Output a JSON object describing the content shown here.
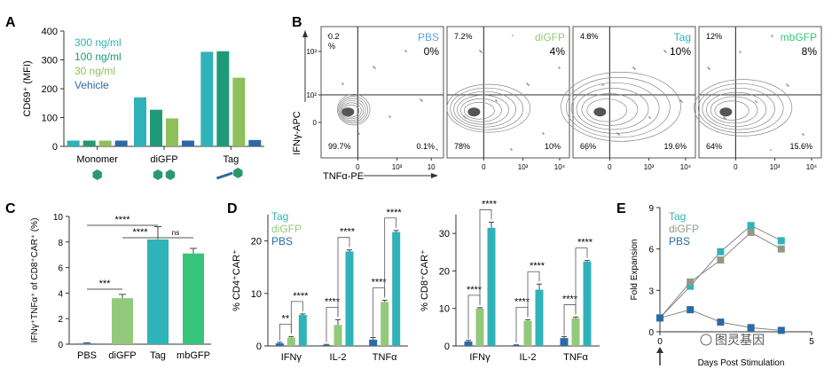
{
  "colors": {
    "teal": "#2fb3b8",
    "green": "#1f9a78",
    "olive": "#8fbf5a",
    "blue": "#2b6aa8",
    "mbgfp": "#36c57a",
    "diGFP_light": "#93c97b",
    "tag_grey": "#8f9a83",
    "axis": "#333333"
  },
  "panels": {
    "A": {
      "letter": "A"
    },
    "B": {
      "letter": "B"
    },
    "C": {
      "letter": "C"
    },
    "D": {
      "letter": "D"
    },
    "E": {
      "letter": "E"
    }
  },
  "chart_data": [
    {
      "panel": "A",
      "type": "bar",
      "ylabel": "CD69⁺ (MFI)",
      "ylim": [
        0,
        400
      ],
      "yticks": [
        0,
        100,
        200,
        300,
        400
      ],
      "categories": [
        "Monomer",
        "diGFP",
        "Tag"
      ],
      "series": [
        {
          "name": "300 ng/ml",
          "color": "#2fb3b8",
          "values": [
            20,
            170,
            328
          ]
        },
        {
          "name": "100 ng/ml",
          "color": "#1f9a78",
          "values": [
            20,
            127,
            330
          ]
        },
        {
          "name": "30 ng/ml",
          "color": "#8fbf5a",
          "values": [
            20,
            97,
            238
          ]
        },
        {
          "name": "Vehicle",
          "color": "#2b6aa8",
          "values": [
            20,
            20,
            22
          ]
        }
      ],
      "legend_placement": "top-left"
    },
    {
      "panel": "B",
      "type": "scatter",
      "xlabel": "TNFα-PE",
      "ylabel": "IFNγ-APC",
      "x_ticks": [
        "0",
        "10³",
        "10",
        "10⁴"
      ],
      "y_ticks": [
        "0",
        "10²",
        "10³"
      ],
      "plots": [
        {
          "name": "PBS",
          "color": "#5aa3e8",
          "pct_main": "0%",
          "q_ul": "0.2\n%",
          "q_ll": "99.7%",
          "q_lr": "0.1%"
        },
        {
          "name": "diGFP",
          "color": "#93c97b",
          "pct_main": "4%",
          "q_ul": "7.2%",
          "q_ll": "78%",
          "q_lr": "10%"
        },
        {
          "name": "Tag",
          "color": "#2fb3b8",
          "pct_main": "10%",
          "q_ul": "4.8%",
          "q_ll": "66%",
          "q_lr": "19.6%"
        },
        {
          "name": "mbGFP",
          "color": "#36c57a",
          "pct_main": "8%",
          "q_ul": "12%",
          "q_ll": "64%",
          "q_lr": "15.6%"
        }
      ]
    },
    {
      "panel": "C",
      "type": "bar",
      "ylabel": "IFNγ⁺TNFα⁺ of CD8⁺CAR⁺ (%)",
      "ylim": [
        0,
        10
      ],
      "yticks": [
        0,
        2,
        4,
        6,
        8,
        10
      ],
      "categories": [
        "PBS",
        "diGFP",
        "Tag",
        "mbGFP"
      ],
      "values": [
        0.05,
        3.6,
        8.2,
        7.1
      ],
      "errors": [
        0.05,
        0.3,
        1.0,
        0.4
      ],
      "colors": [
        "#2b6aa8",
        "#93c97b",
        "#2fb3b8",
        "#36c57a"
      ],
      "sig": [
        {
          "from": 0,
          "to": 1,
          "label": "***"
        },
        {
          "from": 0,
          "to": 2,
          "label": "****"
        },
        {
          "from": 1,
          "to": 2,
          "label": "****"
        },
        {
          "from": 2,
          "to": 3,
          "label": "ns"
        }
      ]
    },
    {
      "panel": "D1",
      "type": "bar",
      "ylabel": "% CD4⁺CAR⁺",
      "ylim": [
        0,
        25
      ],
      "yticks": [
        0,
        10,
        20
      ],
      "categories": [
        "IFNγ",
        "IL-2",
        "TNFα"
      ],
      "series": [
        {
          "name": "PBS",
          "color": "#2b6aa8",
          "values": [
            0.5,
            0.2,
            1.2
          ],
          "errors": [
            0.2,
            0.1,
            0.4
          ]
        },
        {
          "name": "diGFP",
          "color": "#93c97b",
          "values": [
            1.6,
            4.0,
            8.4
          ],
          "errors": [
            0.2,
            1.0,
            0.3
          ]
        },
        {
          "name": "Tag",
          "color": "#2fb3b8",
          "values": [
            5.9,
            18.0,
            21.7
          ],
          "errors": [
            0.2,
            0.3,
            0.3
          ]
        }
      ],
      "legend": [
        "Tag",
        "diGFP",
        "PBS"
      ],
      "sig": [
        [
          "**",
          "****"
        ],
        [
          "****",
          "****"
        ],
        [
          "****",
          "****"
        ]
      ]
    },
    {
      "panel": "D2",
      "type": "bar",
      "ylabel": "% CD8⁺CAR⁺",
      "ylim": [
        0,
        35
      ],
      "yticks": [
        0,
        10,
        20,
        30
      ],
      "categories": [
        "IFNγ",
        "IL-2",
        "TNFα"
      ],
      "series": [
        {
          "name": "PBS",
          "color": "#2b6aa8",
          "values": [
            1.2,
            0.2,
            2.1
          ],
          "errors": [
            0.3,
            0.1,
            0.4
          ]
        },
        {
          "name": "diGFP",
          "color": "#93c97b",
          "values": [
            10.0,
            6.7,
            7.4
          ],
          "errors": [
            0.2,
            0.3,
            0.3
          ]
        },
        {
          "name": "Tag",
          "color": "#2fb3b8",
          "values": [
            31.5,
            15.0,
            22.5
          ],
          "errors": [
            1.5,
            1.5,
            0.3
          ]
        }
      ],
      "sig": [
        [
          "****",
          "****"
        ],
        [
          "****",
          "****"
        ],
        [
          "****",
          "****"
        ]
      ]
    },
    {
      "panel": "E",
      "type": "line",
      "xlabel": "Days Post Stimulation",
      "ylabel": "Fold Expansion",
      "xlim": [
        0,
        5
      ],
      "ylim": [
        0,
        9
      ],
      "yticks": [
        0,
        3,
        6,
        9
      ],
      "xticks": [
        0,
        5
      ],
      "x": [
        0,
        1,
        2,
        3,
        4
      ],
      "series": [
        {
          "name": "Tag",
          "color": "#2fb3b8",
          "values": [
            1.0,
            3.3,
            5.8,
            7.7,
            6.6
          ]
        },
        {
          "name": "diGFP",
          "color": "#8f9a83",
          "values": [
            1.0,
            3.6,
            5.2,
            7.2,
            6.0
          ]
        },
        {
          "name": "PBS",
          "color": "#2b6aa8",
          "values": [
            1.0,
            1.6,
            0.7,
            0.3,
            0.1
          ]
        }
      ],
      "legend": [
        "Tag",
        "diGFP",
        "PBS"
      ],
      "watermark": "图灵基因"
    }
  ]
}
